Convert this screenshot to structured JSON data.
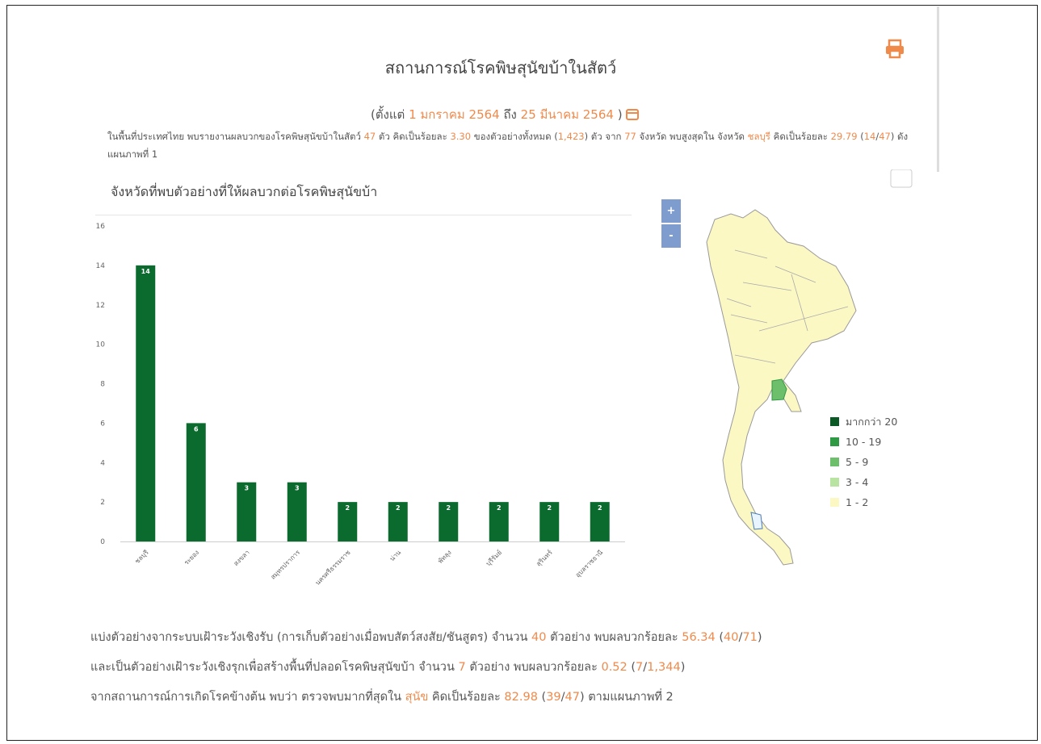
{
  "header": {
    "title": "สถานการณ์โรคพิษสุนัขบ้าในสัตว์",
    "subtitle": [
      "(ตั้งแต่ ",
      {
        "text": "1 มกราคม 2564",
        "highlight": true
      },
      " ถึง ",
      {
        "text": "25 มีนาคม 2564",
        "highlight": true
      },
      " )"
    ]
  },
  "summary": [
    "ในพื้นที่ประเทศไทย พบรายงานผลบวกของโรคพิษสุนัขบ้าในสัตว์ ",
    {
      "text": "47",
      "highlight": true
    },
    " ตัว คิดเป็นร้อยละ ",
    {
      "text": "3.30",
      "highlight": true
    },
    " ของตัวอย่างทั้งหมด (",
    {
      "text": "1,423",
      "highlight": true
    },
    ") ตัว จาก ",
    {
      "text": "77",
      "highlight": true
    },
    " จังหวัด พบสูงสุดใน จังหวัด ",
    {
      "text": "ชลบุรี",
      "highlight": true
    },
    " คิดเป็นร้อยละ ",
    {
      "text": "29.79",
      "highlight": true
    },
    " (",
    {
      "text": "14",
      "highlight": true
    },
    "/",
    {
      "text": "47",
      "highlight": true
    },
    ") ดังแผนภาพที่ 1"
  ],
  "chart_data": {
    "type": "bar",
    "title": "จังหวัดที่พบตัวอย่างที่ให้ผลบวกต่อโรคพิษสุนัขบ้า",
    "categories": [
      "ชลบุรี",
      "ระยอง",
      "สงขลา",
      "สมุทรปราการ",
      "นครศรีธรรมราช",
      "น่าน",
      "พัทลุง",
      "บุรีรัมย์",
      "สุรินทร์",
      "อุบลราชธานี"
    ],
    "values": [
      14,
      6,
      3,
      3,
      2,
      2,
      2,
      2,
      2,
      2
    ],
    "color": "#0b6b2e",
    "ylim": [
      0,
      16
    ],
    "yticks": [
      0,
      2,
      4,
      6,
      8,
      10,
      12,
      14,
      16
    ]
  },
  "map": {
    "zoom": [
      "+",
      "-"
    ],
    "legend": [
      {
        "label": "มากกว่า 20",
        "color": "#0b5a25"
      },
      {
        "label": "10 - 19",
        "color": "#2f9a44"
      },
      {
        "label": "5 - 9",
        "color": "#6dbf6b"
      },
      {
        "label": "3 - 4",
        "color": "#b8e3a0"
      },
      {
        "label": "1 - 2",
        "color": "#fbf8c4"
      }
    ]
  },
  "notes": [
    [
      "แบ่งตัวอย่างจากระบบเฝ้าระวังเชิงรับ (การเก็บตัวอย่างเมื่อพบสัตว์สงสัย/ชันสูตร) จำนวน ",
      {
        "text": "40",
        "highlight": true
      },
      " ตัวอย่าง พบผลบวกร้อยละ ",
      {
        "text": "56.34",
        "highlight": true
      },
      " (",
      {
        "text": "40",
        "highlight": true
      },
      "/",
      {
        "text": "71",
        "highlight": true
      },
      ")"
    ],
    [
      "และเป็นตัวอย่างเฝ้าระวังเชิงรุกเพื่อสร้างพื้นที่ปลอดโรคพิษสุนัขบ้า จำนวน ",
      {
        "text": "7",
        "highlight": true
      },
      " ตัวอย่าง พบผลบวกร้อยละ ",
      {
        "text": "0.52",
        "highlight": true
      },
      " (",
      {
        "text": "7",
        "highlight": true
      },
      "/",
      {
        "text": "1,344",
        "highlight": true
      },
      ")"
    ],
    [
      "จากสถานการณ์การเกิดโรคข้างต้น พบว่า ตรวจพบมากที่สุดใน ",
      {
        "text": "สุนัข",
        "highlight": true
      },
      " คิดเป็นร้อยละ ",
      {
        "text": "82.98",
        "highlight": true
      },
      " (",
      {
        "text": "39",
        "highlight": true
      },
      "/",
      {
        "text": "47",
        "highlight": true
      },
      ") ตามแผนภาพที่ 2"
    ]
  ]
}
